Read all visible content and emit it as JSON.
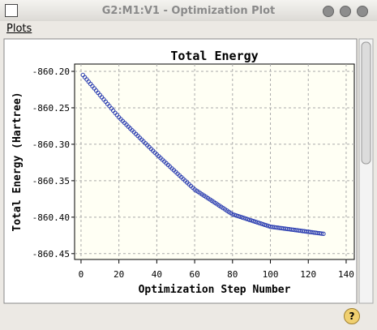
{
  "window": {
    "title": "G2:M1:V1 - Optimization Plot",
    "menu": [
      "Plots"
    ]
  },
  "chart_data": {
    "type": "scatter",
    "title": "Total Energy",
    "x_label": "Optimization Step Number",
    "y_label": "Total Energy (Hartree)",
    "xlim": [
      -3.4,
      144.3
    ],
    "ylim": [
      -860.458,
      -860.19
    ],
    "xticks": [
      0,
      20,
      40,
      60,
      80,
      100,
      120,
      140
    ],
    "yticks": [
      {
        "value": -860.2,
        "label": "-860.20"
      },
      -860.25,
      {
        "value": -860.3,
        "label": "-860.30"
      },
      -860.35,
      {
        "value": -860.4,
        "label": "-860.40"
      },
      -860.45
    ],
    "grid": true,
    "series": [
      {
        "name": "Total Energy",
        "color": "#2a3cb0",
        "x": [
          1,
          2,
          3,
          4,
          5,
          6,
          7,
          8,
          9,
          10,
          11,
          12,
          13,
          14,
          15,
          16,
          17,
          18,
          19,
          20,
          21,
          22,
          23,
          24,
          25,
          26,
          27,
          28,
          29,
          30,
          31,
          32,
          33,
          34,
          35,
          36,
          37,
          38,
          39,
          40,
          41,
          42,
          43,
          44,
          45,
          46,
          47,
          48,
          49,
          50,
          51,
          52,
          53,
          54,
          55,
          56,
          57,
          58,
          59,
          60,
          61,
          62,
          63,
          64,
          65,
          66,
          67,
          68,
          69,
          70,
          71,
          72,
          73,
          74,
          75,
          76,
          77,
          78,
          79,
          80,
          81,
          82,
          83,
          84,
          85,
          86,
          87,
          88,
          89,
          90,
          91,
          92,
          93,
          94,
          95,
          96,
          97,
          98,
          99,
          100,
          101,
          102,
          103,
          104,
          105,
          106,
          107,
          108,
          109,
          110,
          111,
          112,
          113,
          114,
          115,
          116,
          117,
          118,
          119,
          120,
          121,
          122,
          123,
          124,
          125,
          126,
          127,
          128
        ],
        "values": [
          -860.205,
          -860.2081,
          -860.2111,
          -860.2142,
          -860.2172,
          -860.2203,
          -860.2233,
          -860.2264,
          -860.2294,
          -860.2325,
          -860.2355,
          -860.2386,
          -860.2416,
          -860.2447,
          -860.2477,
          -860.2508,
          -860.2538,
          -860.2569,
          -860.2599,
          -860.263,
          -860.2656,
          -860.2681,
          -860.2707,
          -860.2732,
          -860.2758,
          -860.2783,
          -860.2809,
          -860.2834,
          -860.286,
          -860.2885,
          -860.2911,
          -860.2936,
          -860.2962,
          -860.2987,
          -860.3013,
          -860.3038,
          -860.3064,
          -860.3089,
          -860.3115,
          -860.314,
          -860.3164,
          -860.3188,
          -860.3212,
          -860.3236,
          -860.326,
          -860.3284,
          -860.3308,
          -860.3332,
          -860.3356,
          -860.338,
          -860.3404,
          -860.3428,
          -860.3452,
          -860.3476,
          -860.35,
          -860.3524,
          -860.3548,
          -860.3572,
          -860.3596,
          -860.362,
          -860.3637,
          -860.3654,
          -860.3671,
          -860.3688,
          -860.3705,
          -860.3722,
          -860.3739,
          -860.3756,
          -860.3773,
          -860.379,
          -860.3807,
          -860.3824,
          -860.3841,
          -860.3858,
          -860.3875,
          -860.3892,
          -860.3909,
          -860.3926,
          -860.3943,
          -860.396,
          -860.3969,
          -860.3977,
          -860.3986,
          -860.3994,
          -860.4003,
          -860.4011,
          -860.402,
          -860.4028,
          -860.4037,
          -860.4045,
          -860.4054,
          -860.4062,
          -860.4071,
          -860.4079,
          -860.4088,
          -860.4096,
          -860.4105,
          -860.4113,
          -860.4122,
          -860.413,
          -860.4134,
          -860.4137,
          -860.4141,
          -860.4144,
          -860.4148,
          -860.4151,
          -860.4155,
          -860.4158,
          -860.4162,
          -860.4165,
          -860.4169,
          -860.4172,
          -860.4176,
          -860.4179,
          -860.4183,
          -860.4186,
          -860.419,
          -860.4193,
          -860.4197,
          -860.42,
          -860.4204,
          -860.4207,
          -860.4211,
          -860.4214,
          -860.4218,
          -860.4221,
          -860.4225,
          -860.4228
        ]
      }
    ]
  }
}
